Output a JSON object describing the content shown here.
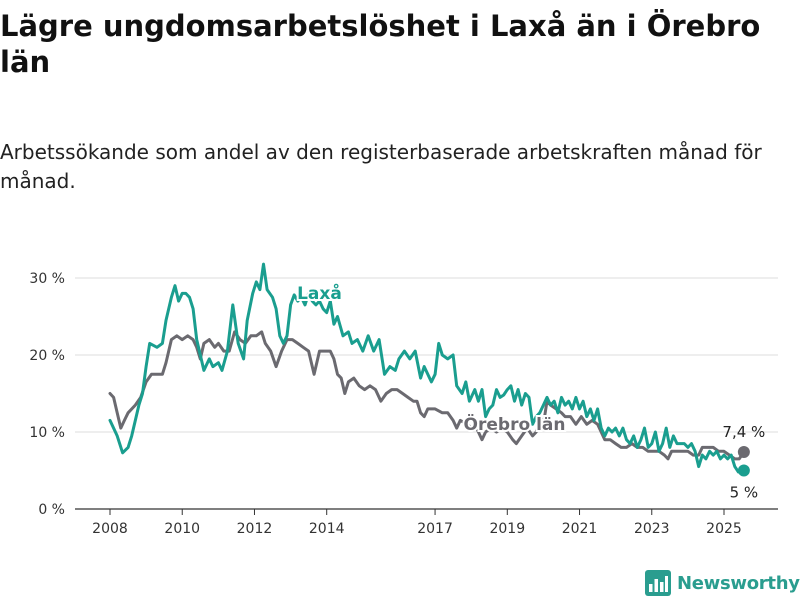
{
  "title": "Lägre ungdomsarbetslöshet i Laxå än i Örebro län",
  "subtitle": "Arbetssökande som andel av den registerbaserade arbetskraften månad för månad.",
  "logo": {
    "text": "Newsworthy",
    "icon": "newsworthy-chart-icon"
  },
  "colors": {
    "laxa": "#1a9e8f",
    "orebro": "#6b6a70",
    "grid": "#dddddd",
    "axis": "#333333"
  },
  "chart_data": {
    "type": "line",
    "title": "Lägre ungdomsarbetslöshet i Laxå än i Örebro län",
    "subtitle": "Arbetssökande som andel av den registerbaserade arbetskraften månad för månad.",
    "xlabel": "",
    "ylabel": "",
    "y_unit": "%",
    "ylim": [
      0,
      32
    ],
    "xlim": [
      2007.7,
      2025.9
    ],
    "y_ticks": [
      0,
      10,
      20,
      30
    ],
    "y_tick_labels": [
      "0 %",
      "10 %",
      "20 %",
      "30 %"
    ],
    "x_ticks": [
      2008,
      2010,
      2012,
      2014,
      2017,
      2019,
      2021,
      2023,
      2025
    ],
    "x_tick_labels": [
      "2008",
      "2010",
      "2012",
      "2014",
      "2017",
      "2019",
      "2021",
      "2023",
      "2025"
    ],
    "grid": "horizontal",
    "series": [
      {
        "name": "Laxå",
        "color": "#1a9e8f",
        "end_label": "5 %",
        "points": [
          [
            2008.0,
            11.5
          ],
          [
            2008.1,
            10.5
          ],
          [
            2008.2,
            9.5
          ],
          [
            2008.35,
            7.3
          ],
          [
            2008.5,
            8.0
          ],
          [
            2008.6,
            9.5
          ],
          [
            2008.8,
            13.5
          ],
          [
            2008.9,
            15.0
          ],
          [
            2009.0,
            18.5
          ],
          [
            2009.1,
            21.5
          ],
          [
            2009.3,
            21.0
          ],
          [
            2009.45,
            21.5
          ],
          [
            2009.55,
            24.5
          ],
          [
            2009.7,
            27.5
          ],
          [
            2009.8,
            29.0
          ],
          [
            2009.9,
            27.0
          ],
          [
            2010.0,
            28.0
          ],
          [
            2010.1,
            28.0
          ],
          [
            2010.2,
            27.5
          ],
          [
            2010.3,
            26.0
          ],
          [
            2010.4,
            22.0
          ],
          [
            2010.5,
            20.0
          ],
          [
            2010.6,
            18.0
          ],
          [
            2010.75,
            19.5
          ],
          [
            2010.85,
            18.5
          ],
          [
            2011.0,
            19.0
          ],
          [
            2011.1,
            18.0
          ],
          [
            2011.25,
            20.5
          ],
          [
            2011.4,
            26.5
          ],
          [
            2011.55,
            21.5
          ],
          [
            2011.7,
            19.5
          ],
          [
            2011.8,
            24.5
          ],
          [
            2011.95,
            28.0
          ],
          [
            2012.05,
            29.5
          ],
          [
            2012.15,
            28.5
          ],
          [
            2012.25,
            31.8
          ],
          [
            2012.35,
            28.5
          ],
          [
            2012.5,
            27.5
          ],
          [
            2012.6,
            26.0
          ],
          [
            2012.7,
            22.5
          ],
          [
            2012.8,
            21.5
          ],
          [
            2012.9,
            22.5
          ],
          [
            2013.0,
            26.5
          ],
          [
            2013.1,
            27.8
          ],
          [
            2013.2,
            27.0
          ],
          [
            2013.3,
            27.5
          ],
          [
            2013.4,
            26.5
          ],
          [
            2013.5,
            28.0
          ],
          [
            2013.6,
            27.0
          ],
          [
            2013.7,
            26.5
          ],
          [
            2013.8,
            27.0
          ],
          [
            2013.9,
            26.0
          ],
          [
            2014.0,
            25.5
          ],
          [
            2014.1,
            27.0
          ],
          [
            2014.2,
            24.0
          ],
          [
            2014.3,
            25.0
          ],
          [
            2014.45,
            22.5
          ],
          [
            2014.6,
            23.0
          ],
          [
            2014.7,
            21.5
          ],
          [
            2014.85,
            22.0
          ],
          [
            2015.0,
            20.5
          ],
          [
            2015.15,
            22.5
          ],
          [
            2015.3,
            20.5
          ],
          [
            2015.45,
            22.0
          ],
          [
            2015.6,
            17.5
          ],
          [
            2015.75,
            18.5
          ],
          [
            2015.9,
            18.0
          ],
          [
            2016.0,
            19.5
          ],
          [
            2016.15,
            20.5
          ],
          [
            2016.3,
            19.5
          ],
          [
            2016.45,
            20.5
          ],
          [
            2016.6,
            17.0
          ],
          [
            2016.7,
            18.5
          ],
          [
            2016.9,
            16.5
          ],
          [
            2017.0,
            17.5
          ],
          [
            2017.1,
            21.5
          ],
          [
            2017.2,
            20.0
          ],
          [
            2017.35,
            19.5
          ],
          [
            2017.5,
            20.0
          ],
          [
            2017.6,
            16.0
          ],
          [
            2017.75,
            15.0
          ],
          [
            2017.85,
            16.5
          ],
          [
            2017.95,
            14.0
          ],
          [
            2018.1,
            15.5
          ],
          [
            2018.2,
            14.0
          ],
          [
            2018.3,
            15.5
          ],
          [
            2018.4,
            12.0
          ],
          [
            2018.5,
            13.0
          ],
          [
            2018.6,
            13.5
          ],
          [
            2018.7,
            15.5
          ],
          [
            2018.8,
            14.5
          ],
          [
            2018.9,
            14.8
          ],
          [
            2019.0,
            15.5
          ],
          [
            2019.1,
            16.0
          ],
          [
            2019.2,
            14.0
          ],
          [
            2019.3,
            15.5
          ],
          [
            2019.4,
            13.5
          ],
          [
            2019.5,
            15.0
          ],
          [
            2019.6,
            14.5
          ],
          [
            2019.7,
            11.0
          ],
          [
            2019.8,
            12.0
          ],
          [
            2019.9,
            12.5
          ],
          [
            2020.0,
            13.5
          ],
          [
            2020.1,
            14.5
          ],
          [
            2020.2,
            13.5
          ],
          [
            2020.3,
            14.0
          ],
          [
            2020.4,
            12.5
          ],
          [
            2020.5,
            14.5
          ],
          [
            2020.6,
            13.5
          ],
          [
            2020.7,
            14.0
          ],
          [
            2020.8,
            13.0
          ],
          [
            2020.9,
            14.5
          ],
          [
            2021.0,
            13.0
          ],
          [
            2021.1,
            14.0
          ],
          [
            2021.2,
            12.0
          ],
          [
            2021.3,
            13.0
          ],
          [
            2021.4,
            11.5
          ],
          [
            2021.5,
            13.0
          ],
          [
            2021.6,
            10.5
          ],
          [
            2021.7,
            9.5
          ],
          [
            2021.8,
            10.5
          ],
          [
            2021.9,
            10.0
          ],
          [
            2022.0,
            10.5
          ],
          [
            2022.1,
            9.5
          ],
          [
            2022.2,
            10.5
          ],
          [
            2022.3,
            9.0
          ],
          [
            2022.4,
            8.5
          ],
          [
            2022.5,
            9.5
          ],
          [
            2022.6,
            8.0
          ],
          [
            2022.7,
            9.0
          ],
          [
            2022.8,
            10.5
          ],
          [
            2022.9,
            8.0
          ],
          [
            2023.0,
            8.5
          ],
          [
            2023.1,
            10.0
          ],
          [
            2023.2,
            7.5
          ],
          [
            2023.3,
            8.5
          ],
          [
            2023.4,
            10.5
          ],
          [
            2023.5,
            8.0
          ],
          [
            2023.6,
            9.5
          ],
          [
            2023.7,
            8.5
          ],
          [
            2023.8,
            8.5
          ],
          [
            2023.9,
            8.5
          ],
          [
            2024.0,
            8.0
          ],
          [
            2024.1,
            8.5
          ],
          [
            2024.2,
            7.5
          ],
          [
            2024.3,
            5.5
          ],
          [
            2024.4,
            7.0
          ],
          [
            2024.5,
            6.5
          ],
          [
            2024.6,
            7.5
          ],
          [
            2024.7,
            7.0
          ],
          [
            2024.8,
            7.5
          ],
          [
            2024.9,
            6.5
          ],
          [
            2025.0,
            7.0
          ],
          [
            2025.1,
            6.5
          ],
          [
            2025.2,
            7.0
          ],
          [
            2025.3,
            5.5
          ],
          [
            2025.4,
            4.8
          ],
          [
            2025.55,
            5.0
          ]
        ]
      },
      {
        "name": "Örebro län",
        "color": "#6b6a70",
        "end_label": "7,4 %",
        "points": [
          [
            2008.0,
            15.0
          ],
          [
            2008.1,
            14.5
          ],
          [
            2008.2,
            12.5
          ],
          [
            2008.3,
            10.5
          ],
          [
            2008.4,
            11.5
          ],
          [
            2008.5,
            12.5
          ],
          [
            2008.7,
            13.5
          ],
          [
            2008.85,
            14.5
          ],
          [
            2009.0,
            16.5
          ],
          [
            2009.15,
            17.5
          ],
          [
            2009.3,
            17.5
          ],
          [
            2009.45,
            17.5
          ],
          [
            2009.55,
            19.0
          ],
          [
            2009.7,
            22.0
          ],
          [
            2009.85,
            22.5
          ],
          [
            2010.0,
            22.0
          ],
          [
            2010.15,
            22.5
          ],
          [
            2010.3,
            22.0
          ],
          [
            2010.4,
            21.0
          ],
          [
            2010.5,
            19.5
          ],
          [
            2010.6,
            21.5
          ],
          [
            2010.75,
            22.0
          ],
          [
            2010.9,
            21.0
          ],
          [
            2011.0,
            21.5
          ],
          [
            2011.15,
            20.5
          ],
          [
            2011.3,
            20.5
          ],
          [
            2011.45,
            23.0
          ],
          [
            2011.6,
            22.0
          ],
          [
            2011.75,
            21.5
          ],
          [
            2011.9,
            22.5
          ],
          [
            2012.05,
            22.5
          ],
          [
            2012.2,
            23.0
          ],
          [
            2012.3,
            21.5
          ],
          [
            2012.45,
            20.5
          ],
          [
            2012.6,
            18.5
          ],
          [
            2012.75,
            20.5
          ],
          [
            2012.9,
            22.0
          ],
          [
            2013.05,
            22.0
          ],
          [
            2013.2,
            21.5
          ],
          [
            2013.35,
            21.0
          ],
          [
            2013.5,
            20.5
          ],
          [
            2013.65,
            17.5
          ],
          [
            2013.8,
            20.5
          ],
          [
            2013.95,
            20.5
          ],
          [
            2014.1,
            20.5
          ],
          [
            2014.2,
            19.5
          ],
          [
            2014.3,
            17.5
          ],
          [
            2014.4,
            17.0
          ],
          [
            2014.5,
            15.0
          ],
          [
            2014.6,
            16.5
          ],
          [
            2014.75,
            17.0
          ],
          [
            2014.9,
            16.0
          ],
          [
            2015.05,
            15.5
          ],
          [
            2015.2,
            16.0
          ],
          [
            2015.35,
            15.5
          ],
          [
            2015.5,
            14.0
          ],
          [
            2015.65,
            15.0
          ],
          [
            2015.8,
            15.5
          ],
          [
            2015.95,
            15.5
          ],
          [
            2016.1,
            15.0
          ],
          [
            2016.25,
            14.5
          ],
          [
            2016.4,
            14.0
          ],
          [
            2016.5,
            14.0
          ],
          [
            2016.6,
            12.5
          ],
          [
            2016.7,
            12.0
          ],
          [
            2016.8,
            13.0
          ],
          [
            2017.0,
            13.0
          ],
          [
            2017.2,
            12.5
          ],
          [
            2017.35,
            12.5
          ],
          [
            2017.5,
            11.5
          ],
          [
            2017.6,
            10.5
          ],
          [
            2017.7,
            11.5
          ],
          [
            2017.9,
            11.0
          ],
          [
            2018.0,
            10.5
          ],
          [
            2018.15,
            10.5
          ],
          [
            2018.3,
            9.0
          ],
          [
            2018.4,
            10.0
          ],
          [
            2018.55,
            10.5
          ],
          [
            2018.7,
            10.0
          ],
          [
            2018.85,
            10.5
          ],
          [
            2019.0,
            10.0
          ],
          [
            2019.15,
            9.0
          ],
          [
            2019.25,
            8.5
          ],
          [
            2019.4,
            9.5
          ],
          [
            2019.55,
            10.5
          ],
          [
            2019.7,
            9.5
          ],
          [
            2019.8,
            10.0
          ],
          [
            2019.9,
            11.5
          ],
          [
            2020.0,
            11.0
          ],
          [
            2020.1,
            14.0
          ],
          [
            2020.2,
            13.5
          ],
          [
            2020.35,
            13.0
          ],
          [
            2020.5,
            12.5
          ],
          [
            2020.6,
            12.0
          ],
          [
            2020.75,
            12.0
          ],
          [
            2020.9,
            11.0
          ],
          [
            2021.05,
            12.0
          ],
          [
            2021.2,
            11.0
          ],
          [
            2021.35,
            11.5
          ],
          [
            2021.5,
            11.0
          ],
          [
            2021.6,
            10.0
          ],
          [
            2021.7,
            9.0
          ],
          [
            2021.85,
            9.0
          ],
          [
            2022.0,
            8.5
          ],
          [
            2022.15,
            8.0
          ],
          [
            2022.3,
            8.0
          ],
          [
            2022.45,
            8.5
          ],
          [
            2022.6,
            8.0
          ],
          [
            2022.75,
            8.0
          ],
          [
            2022.9,
            7.5
          ],
          [
            2023.05,
            7.5
          ],
          [
            2023.2,
            7.5
          ],
          [
            2023.35,
            7.0
          ],
          [
            2023.45,
            6.5
          ],
          [
            2023.55,
            7.5
          ],
          [
            2023.7,
            7.5
          ],
          [
            2023.85,
            7.5
          ],
          [
            2024.0,
            7.5
          ],
          [
            2024.15,
            7.0
          ],
          [
            2024.3,
            7.0
          ],
          [
            2024.4,
            8.0
          ],
          [
            2024.55,
            8.0
          ],
          [
            2024.7,
            8.0
          ],
          [
            2024.85,
            7.5
          ],
          [
            2025.0,
            7.5
          ],
          [
            2025.15,
            7.0
          ],
          [
            2025.3,
            6.5
          ],
          [
            2025.42,
            6.5
          ],
          [
            2025.55,
            7.4
          ]
        ]
      }
    ],
    "annotations": [
      {
        "text": "Laxå",
        "series": "Laxå",
        "at_x": 2013.8,
        "at_y": 27.0
      },
      {
        "text": "Örebro län",
        "series": "Örebro län",
        "at_x": 2019.2,
        "at_y": 10.0
      }
    ]
  }
}
